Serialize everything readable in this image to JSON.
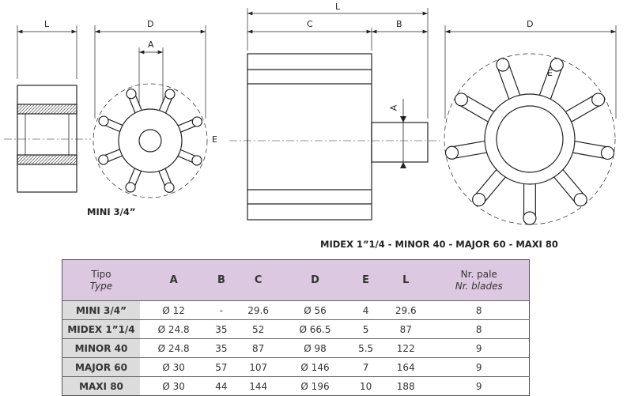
{
  "drawing": {
    "dimension_labels": {
      "L_left": "L",
      "D_left": "D",
      "A_left": "A",
      "E_left": "E",
      "L_mid": "L",
      "C": "C",
      "B": "B",
      "A_mid": "A",
      "D_right": "D",
      "E_right": "E"
    },
    "caption_mini": "MINI 3/4”",
    "caption_others": "MIDEX 1”1/4 - MINOR 40 - MAJOR 60 - MAXI 80",
    "mini_blades": 8,
    "large_blades": 9
  },
  "table": {
    "header": {
      "type_it": "Tipo",
      "type_en": "Type",
      "cols": [
        "A",
        "B",
        "C",
        "D",
        "E",
        "L"
      ],
      "blades_it": "Nr. pale",
      "blades_en": "Nr. blades"
    },
    "rows": [
      [
        "MINI 3/4”",
        "Ø 12",
        "-",
        "29.6",
        "Ø 56",
        "4",
        "29.6",
        "8"
      ],
      [
        "MIDEX 1”1/4",
        "Ø 24.8",
        "35",
        "52",
        "Ø 66.5",
        "5",
        "87",
        "8"
      ],
      [
        "MINOR 40",
        "Ø 24.8",
        "35",
        "87",
        "Ø 98",
        "5.5",
        "122",
        "9"
      ],
      [
        "MAJOR 60",
        "Ø 30",
        "57",
        "107",
        "Ø 146",
        "7",
        "164",
        "9"
      ],
      [
        "MAXI 80",
        "Ø 30",
        "44",
        "144",
        "Ø 196",
        "10",
        "188",
        "9"
      ]
    ],
    "header_color": "#dcc9e1",
    "name_col_color": "#dcdcdc"
  }
}
